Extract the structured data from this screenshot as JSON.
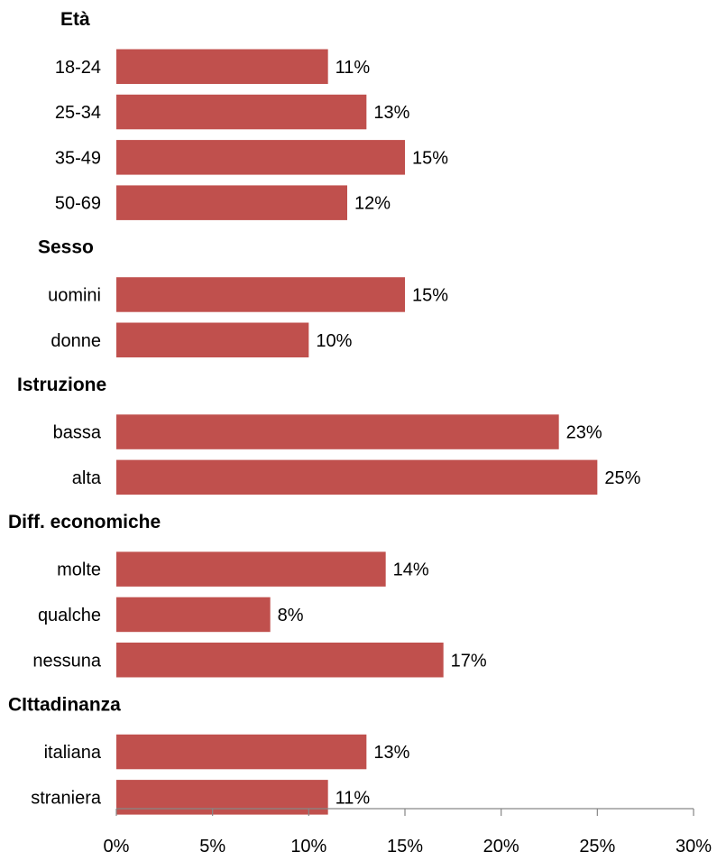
{
  "chart_data": {
    "type": "bar",
    "orientation": "horizontal",
    "title": "",
    "xlabel": "",
    "ylabel": "",
    "xlim": [
      0,
      30
    ],
    "ticks": [
      0,
      5,
      10,
      15,
      20,
      25,
      30
    ],
    "tick_labels": [
      "0%",
      "5%",
      "10%",
      "15%",
      "20%",
      "25%",
      "30%"
    ],
    "grid": false,
    "legend": "none",
    "bar_color": "#c0504d",
    "groups": [
      {
        "name": "Età",
        "categories": [
          "18-24",
          "25-34",
          "35-49",
          "50-69"
        ],
        "values": [
          11,
          13,
          15,
          12
        ],
        "labels": [
          "11%",
          "13%",
          "15%",
          "12%"
        ]
      },
      {
        "name": "Sesso",
        "categories": [
          "uomini",
          "donne"
        ],
        "values": [
          15,
          10
        ],
        "labels": [
          "15%",
          "10%"
        ]
      },
      {
        "name": "Istruzione",
        "categories": [
          "bassa",
          "alta"
        ],
        "values": [
          23,
          25
        ],
        "labels": [
          "23%",
          "25%"
        ]
      },
      {
        "name": "Diff. economiche",
        "categories": [
          "molte",
          "qualche",
          "nessuna"
        ],
        "values": [
          14,
          8,
          17
        ],
        "labels": [
          "14%",
          "8%",
          "17%"
        ]
      },
      {
        "name": "CIttadinanza",
        "categories": [
          "italiana",
          "straniera"
        ],
        "values": [
          13,
          11
        ],
        "labels": [
          "13%",
          "11%"
        ]
      }
    ]
  }
}
